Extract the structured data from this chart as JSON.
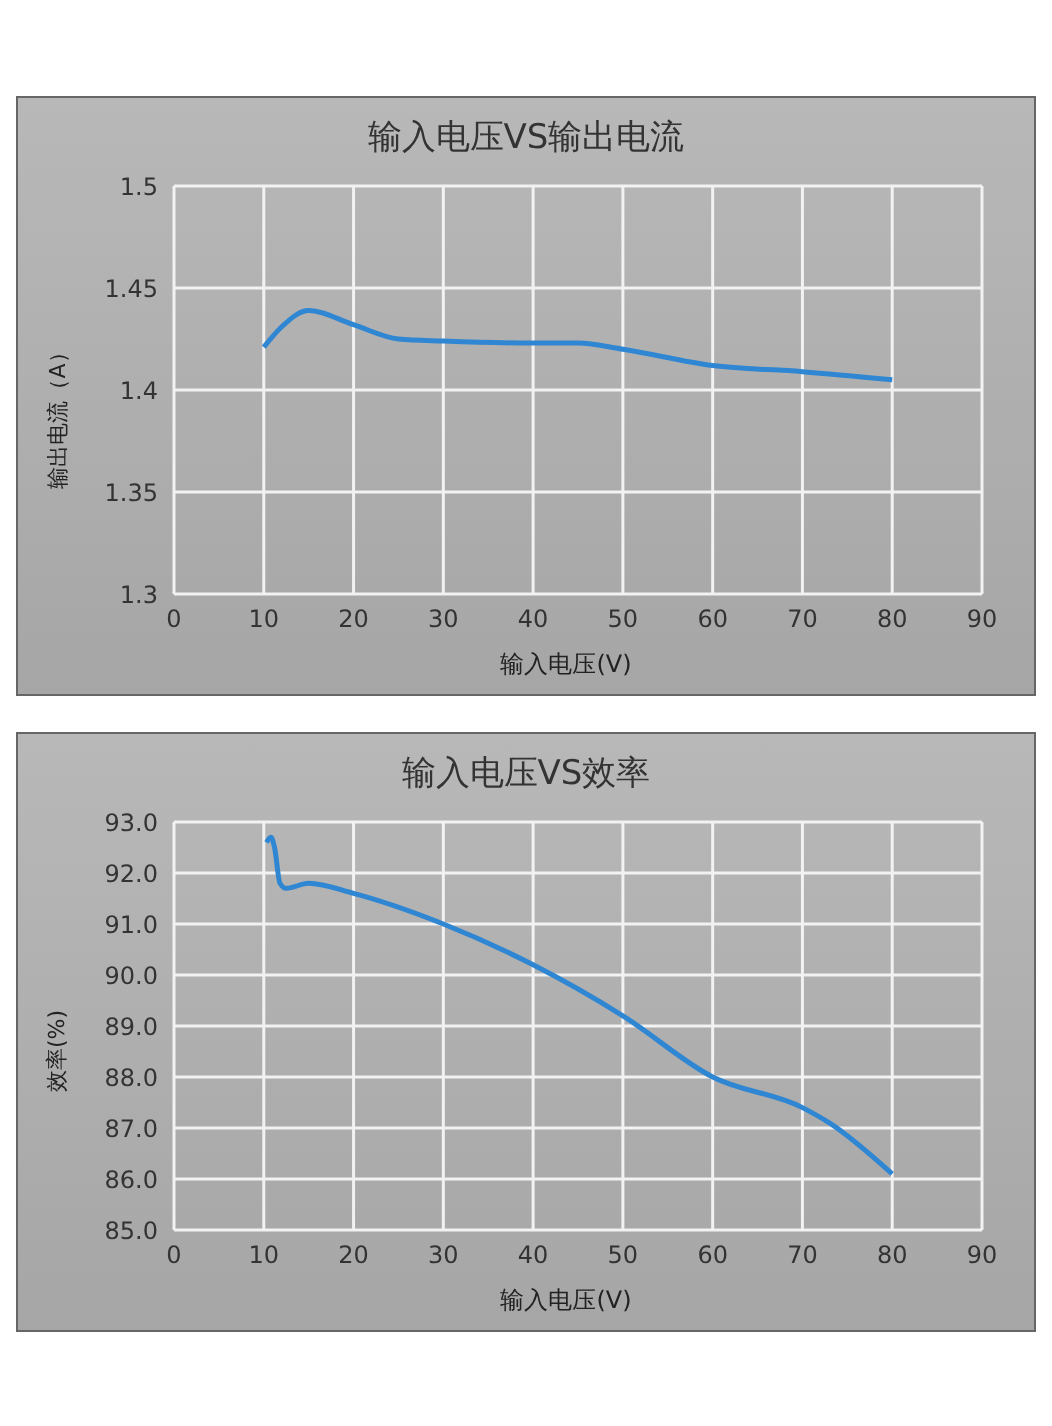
{
  "chart_data": [
    {
      "type": "line",
      "title": "输入电压VS输出电流",
      "xlabel": "输入电压(V)",
      "ylabel": "输出电流（A）",
      "xlim": [
        0,
        90
      ],
      "xticks": [
        0,
        10,
        20,
        30,
        40,
        50,
        60,
        70,
        80,
        90
      ],
      "ylim": [
        1.3,
        1.5
      ],
      "yticks": [
        1.3,
        1.35,
        1.4,
        1.45,
        1.5
      ],
      "grid": true,
      "legend": false,
      "marker": "none",
      "line_style": "solid",
      "x": [
        10,
        12,
        15,
        20,
        25,
        30,
        40,
        45,
        50,
        60,
        70,
        80
      ],
      "series": [
        {
          "color": "#2f86d2",
          "values": [
            1.421,
            1.431,
            1.439,
            1.432,
            1.425,
            1.424,
            1.423,
            1.423,
            1.42,
            1.412,
            1.409,
            1.405
          ]
        }
      ]
    },
    {
      "type": "line",
      "title": "输入电压VS效率",
      "xlabel": "输入电压(V)",
      "ylabel": "效率(%)",
      "xlim": [
        0,
        90
      ],
      "xticks": [
        0,
        10,
        20,
        30,
        40,
        50,
        60,
        70,
        80,
        90
      ],
      "ylim": [
        85,
        93
      ],
      "yticks": [
        {
          "value": 85,
          "label": "85.0"
        },
        {
          "value": 86,
          "label": "86.0"
        },
        {
          "value": 87,
          "label": "87.0"
        },
        {
          "value": 88,
          "label": "88.0"
        },
        {
          "value": 89,
          "label": "89.0"
        },
        {
          "value": 90,
          "label": "90.0"
        },
        {
          "value": 91,
          "label": "91.0"
        },
        {
          "value": 92,
          "label": "92.0"
        },
        {
          "value": 93,
          "label": "93.0"
        }
      ],
      "grid": true,
      "legend": false,
      "marker": "none",
      "line_style": "solid",
      "x": [
        10.3,
        10.8,
        11.2,
        11.8,
        12.5,
        15,
        20,
        30,
        40,
        50,
        60,
        70,
        73,
        80
      ],
      "series": [
        {
          "color": "#2f86d2",
          "values": [
            92.6,
            92.7,
            92.5,
            91.8,
            91.7,
            91.8,
            91.6,
            91.0,
            90.2,
            89.2,
            88.0,
            87.4,
            87.1,
            86.1
          ]
        }
      ]
    }
  ]
}
